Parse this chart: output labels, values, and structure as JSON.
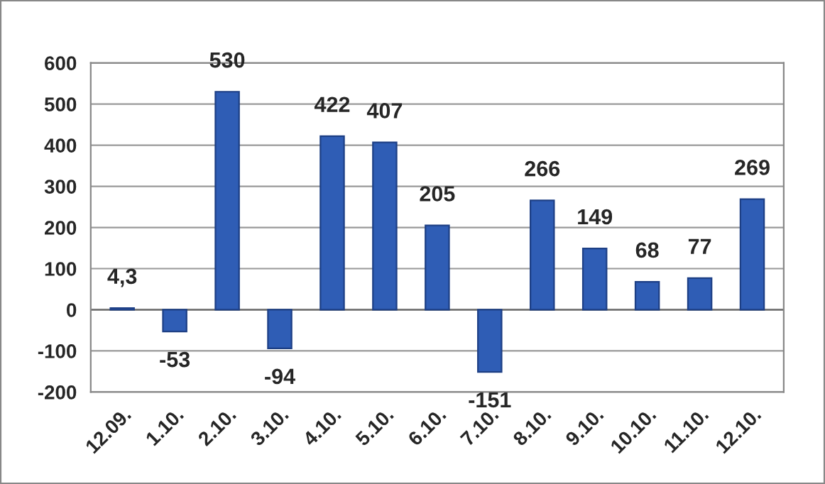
{
  "chart_data": {
    "type": "bar",
    "categories": [
      "12.09.",
      "1.10.",
      "2.10.",
      "3.10.",
      "4.10.",
      "5.10.",
      "6.10.",
      "7.10.",
      "8.10.",
      "9.10.",
      "10.10.",
      "11.10.",
      "12.10."
    ],
    "values": [
      4.3,
      -53,
      530,
      -94,
      422,
      407,
      205,
      -151,
      266,
      149,
      68,
      77,
      269
    ],
    "value_labels": [
      "4,3",
      "-53",
      "530",
      "-94",
      "422",
      "407",
      "205",
      "-151",
      "266",
      "149",
      "68",
      "77",
      "269"
    ],
    "color": "#2f5db5",
    "ylim": [
      -200,
      600
    ],
    "yticks": [
      -200,
      -100,
      0,
      100,
      200,
      300,
      400,
      500,
      600
    ],
    "grid": "y"
  }
}
